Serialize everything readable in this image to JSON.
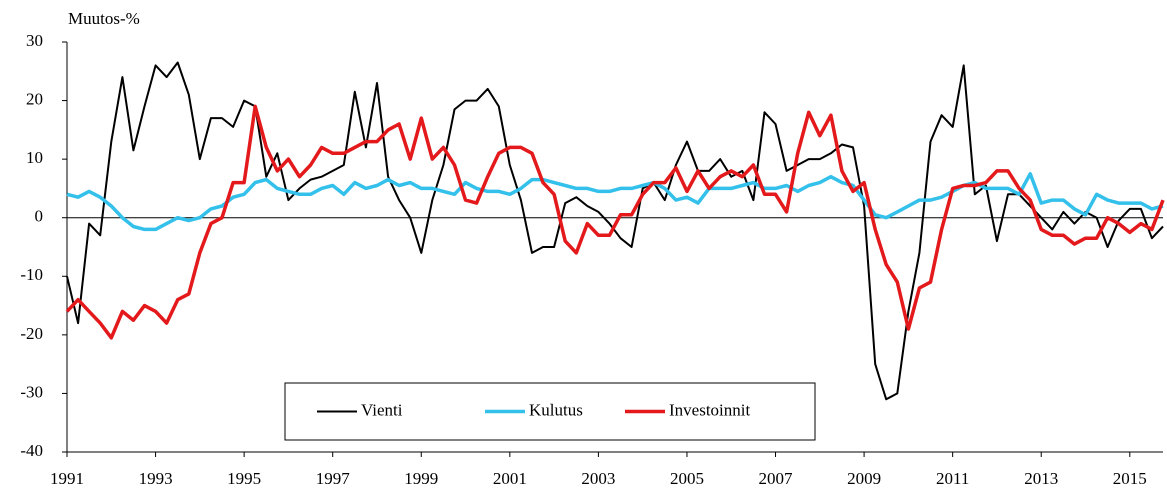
{
  "chart_data": {
    "type": "line",
    "y_label": "Muutos-%",
    "x": [
      1991,
      1991.25,
      1991.5,
      1991.75,
      1992,
      1992.25,
      1992.5,
      1992.75,
      1993,
      1993.25,
      1993.5,
      1993.75,
      1994,
      1994.25,
      1994.5,
      1994.75,
      1995,
      1995.25,
      1995.5,
      1995.75,
      1996,
      1996.25,
      1996.5,
      1996.75,
      1997,
      1997.25,
      1997.5,
      1997.75,
      1998,
      1998.25,
      1998.5,
      1998.75,
      1999,
      1999.25,
      1999.5,
      1999.75,
      2000,
      2000.25,
      2000.5,
      2000.75,
      2001,
      2001.25,
      2001.5,
      2001.75,
      2002,
      2002.25,
      2002.5,
      2002.75,
      2003,
      2003.25,
      2003.5,
      2003.75,
      2004,
      2004.25,
      2004.5,
      2004.75,
      2005,
      2005.25,
      2005.5,
      2005.75,
      2006,
      2006.25,
      2006.5,
      2006.75,
      2007,
      2007.25,
      2007.5,
      2007.75,
      2008,
      2008.25,
      2008.5,
      2008.75,
      2009,
      2009.25,
      2009.5,
      2009.75,
      2010,
      2010.25,
      2010.5,
      2010.75,
      2011,
      2011.25,
      2011.5,
      2011.75,
      2012,
      2012.25,
      2012.5,
      2012.75,
      2013,
      2013.25,
      2013.5,
      2013.75,
      2014,
      2014.25,
      2014.5,
      2014.75,
      2015,
      2015.25,
      2015.5,
      2015.75
    ],
    "series": [
      {
        "name": "Vienti",
        "color": "#000000",
        "width": 2,
        "values": [
          -10,
          -18,
          -1,
          -3,
          13,
          24,
          11.5,
          19,
          26,
          24,
          26.5,
          21,
          10,
          17,
          17,
          15.5,
          20,
          19,
          7,
          11,
          3,
          5,
          6.5,
          7,
          8,
          9,
          21.5,
          12,
          23,
          7,
          3,
          0,
          -6,
          3,
          9,
          18.5,
          20,
          20,
          22,
          19,
          9,
          3,
          -6,
          -5,
          -5,
          2.5,
          3.5,
          2,
          1,
          -1,
          -3.5,
          -5,
          5,
          6,
          3,
          9,
          13,
          8,
          8,
          10,
          7,
          8,
          3,
          18,
          16,
          8,
          9,
          10,
          10,
          11,
          12.5,
          12,
          2,
          -25,
          -31,
          -30,
          -16,
          -6,
          13,
          17.5,
          15.5,
          26,
          4,
          5.5,
          -4,
          4,
          4,
          2,
          0,
          -2,
          1,
          -1,
          1,
          0,
          -5,
          -0.5,
          1.5,
          1.5,
          -3.5,
          -1.5
        ]
      },
      {
        "name": "Kulutus",
        "color": "#33c0ea",
        "width": 3.5,
        "values": [
          4,
          3.5,
          4.5,
          3.5,
          2,
          0,
          -1.5,
          -2,
          -2,
          -1,
          0,
          -0.5,
          0,
          1.5,
          2,
          3.5,
          4,
          6,
          6.5,
          5,
          4.5,
          4,
          4,
          5,
          5.5,
          4,
          6,
          5,
          5.5,
          6.5,
          5.5,
          6,
          5,
          5,
          4.5,
          4,
          6,
          5,
          4.5,
          4.5,
          4,
          5,
          6.5,
          6.5,
          6,
          5.5,
          5,
          5,
          4.5,
          4.5,
          5,
          5,
          5.5,
          6,
          5,
          3,
          3.5,
          2.5,
          5,
          5,
          5,
          5.5,
          6,
          5,
          5,
          5.5,
          4.5,
          5.5,
          6,
          7,
          6,
          5.5,
          3,
          0.5,
          0,
          1,
          2,
          3,
          3,
          3.5,
          4.5,
          5.5,
          6,
          5,
          5,
          5,
          4,
          7.5,
          2.5,
          3,
          3,
          1.5,
          0.5,
          4,
          3,
          2.5,
          2.5,
          2.5,
          1.5,
          2
        ]
      },
      {
        "name": "Investoinnit",
        "color": "#e3191c",
        "width": 3.5,
        "values": [
          -16,
          -14,
          -16,
          -18,
          -20.5,
          -16,
          -17.5,
          -15,
          -16,
          -18,
          -14,
          -13,
          -6,
          -1,
          0,
          6,
          6,
          19,
          12,
          8,
          10,
          7,
          9,
          12,
          11,
          11,
          12,
          13,
          13,
          15,
          16,
          10,
          17,
          10,
          12,
          9,
          3,
          2.5,
          7,
          11,
          12,
          12,
          11,
          6,
          4,
          -4,
          -6,
          -1,
          -3,
          -3,
          0.5,
          0.5,
          4,
          6,
          6,
          8.5,
          4.5,
          8,
          5,
          7,
          8,
          7,
          9,
          4,
          4,
          1,
          11,
          18,
          14,
          17.5,
          8,
          4.5,
          6,
          -2,
          -8,
          -11,
          -19,
          -12,
          -11,
          -2,
          5,
          5.5,
          5.5,
          6,
          8,
          8,
          5,
          3,
          -2,
          -3,
          -3,
          -4.5,
          -3.5,
          -3.5,
          0,
          -1,
          -2.5,
          -1,
          -2,
          3
        ]
      }
    ],
    "xlim": [
      1991,
      2015.75
    ],
    "xticks": [
      1991,
      1993,
      1995,
      1997,
      1999,
      2001,
      2003,
      2005,
      2007,
      2009,
      2011,
      2013,
      2015
    ],
    "ylim": [
      -40,
      30
    ],
    "yticks": [
      -40,
      -30,
      -20,
      -10,
      0,
      10,
      20,
      30
    ],
    "zero_line": true,
    "legend": "lower center"
  }
}
